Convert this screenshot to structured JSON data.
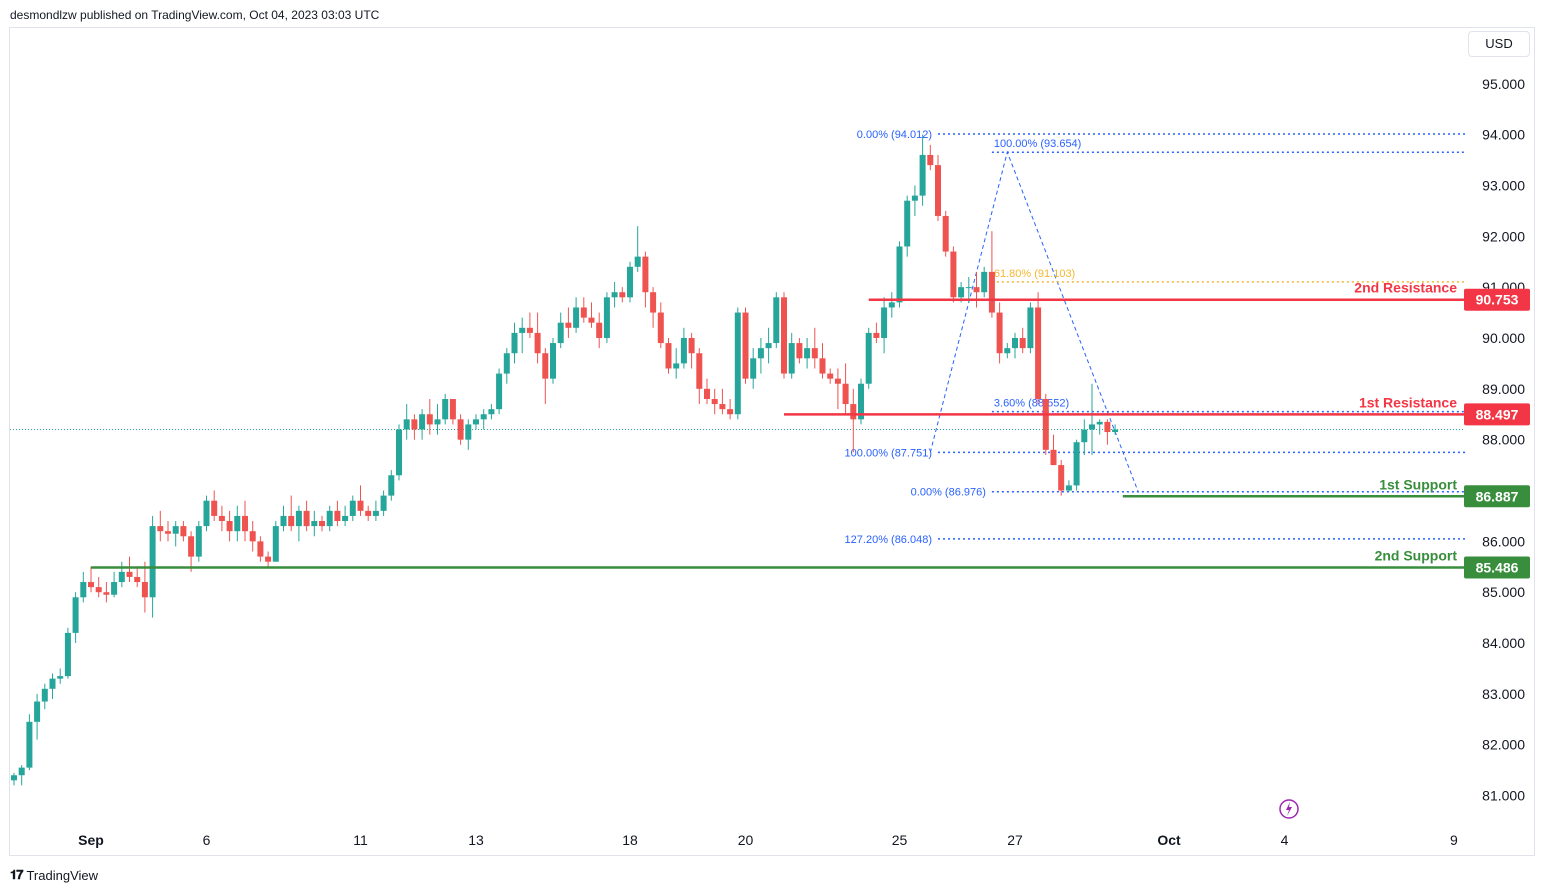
{
  "header": {
    "published": "desmondlzw published on TradingView.com, Oct 04, 2023 03:03 UTC"
  },
  "currency": "USD",
  "footer": {
    "brand": "TradingView"
  },
  "colors": {
    "up": "#26a69a",
    "down": "#ef5350",
    "resistance": "#f23645",
    "support": "#388e3c",
    "fib": "#2962ff",
    "fib_gold": "#f5b731",
    "grid": "#e0e3eb"
  },
  "chart_data": {
    "type": "candlestick",
    "ylim": [
      80.5,
      95.9
    ],
    "y_ticks": [
      "95.000",
      "94.000",
      "93.000",
      "92.000",
      "91.000",
      "90.000",
      "89.000",
      "88.000",
      "86.000",
      "85.000",
      "84.000",
      "83.000",
      "82.000",
      "81.000"
    ],
    "y_tick_values": [
      95,
      94,
      93,
      92,
      91,
      90,
      89,
      88,
      86,
      85,
      84,
      83,
      82,
      81
    ],
    "x_ticks": [
      {
        "label": "Sep",
        "bar": 10,
        "bold": true
      },
      {
        "label": "6",
        "bar": 25
      },
      {
        "label": "11",
        "bar": 45
      },
      {
        "label": "13",
        "bar": 60
      },
      {
        "label": "18",
        "bar": 80
      },
      {
        "label": "20",
        "bar": 95
      },
      {
        "label": "25",
        "bar": 115
      },
      {
        "label": "27",
        "bar": 130
      },
      {
        "label": "Oct",
        "bar": 150,
        "bold": true
      },
      {
        "label": "4",
        "bar": 165
      },
      {
        "label": "9",
        "bar": 187
      }
    ],
    "last_price": 88.2,
    "candles": [
      [
        81.3,
        81.45,
        81.2,
        81.4
      ],
      [
        81.4,
        81.6,
        81.2,
        81.55
      ],
      [
        81.55,
        82.6,
        81.5,
        82.45
      ],
      [
        82.45,
        83.0,
        82.1,
        82.85
      ],
      [
        82.85,
        83.2,
        82.7,
        83.1
      ],
      [
        83.1,
        83.4,
        82.9,
        83.3
      ],
      [
        83.3,
        83.5,
        83.2,
        83.35
      ],
      [
        83.35,
        84.3,
        83.3,
        84.2
      ],
      [
        84.2,
        85.0,
        84.0,
        84.9
      ],
      [
        84.9,
        85.4,
        84.8,
        85.2
      ],
      [
        85.2,
        85.5,
        85.0,
        85.1
      ],
      [
        85.1,
        85.3,
        84.9,
        85.0
      ],
      [
        85.0,
        85.2,
        84.8,
        84.95
      ],
      [
        84.95,
        85.4,
        84.9,
        85.2
      ],
      [
        85.2,
        85.6,
        85.1,
        85.4
      ],
      [
        85.4,
        85.7,
        85.2,
        85.3
      ],
      [
        85.3,
        85.5,
        85.1,
        85.2
      ],
      [
        85.2,
        85.6,
        84.6,
        84.9
      ],
      [
        84.9,
        86.5,
        84.5,
        86.3
      ],
      [
        86.3,
        86.6,
        86.0,
        86.2
      ],
      [
        86.2,
        86.4,
        86.0,
        86.15
      ],
      [
        86.15,
        86.4,
        85.9,
        86.3
      ],
      [
        86.3,
        86.4,
        86.0,
        86.1
      ],
      [
        86.1,
        86.2,
        85.4,
        85.7
      ],
      [
        85.7,
        86.4,
        85.6,
        86.3
      ],
      [
        86.3,
        86.9,
        86.2,
        86.8
      ],
      [
        86.8,
        87.0,
        86.4,
        86.5
      ],
      [
        86.5,
        86.7,
        86.2,
        86.4
      ],
      [
        86.4,
        86.6,
        86.0,
        86.2
      ],
      [
        86.2,
        86.7,
        86.0,
        86.5
      ],
      [
        86.5,
        86.8,
        86.0,
        86.2
      ],
      [
        86.2,
        86.4,
        85.8,
        86.0
      ],
      [
        86.0,
        86.1,
        85.6,
        85.7
      ],
      [
        85.7,
        85.8,
        85.5,
        85.6
      ],
      [
        85.6,
        86.4,
        85.6,
        86.3
      ],
      [
        86.3,
        86.7,
        86.2,
        86.5
      ],
      [
        86.5,
        86.9,
        86.2,
        86.3
      ],
      [
        86.3,
        86.7,
        86.0,
        86.6
      ],
      [
        86.6,
        86.8,
        86.2,
        86.3
      ],
      [
        86.3,
        86.6,
        86.1,
        86.4
      ],
      [
        86.4,
        86.5,
        86.2,
        86.3
      ],
      [
        86.3,
        86.7,
        86.2,
        86.6
      ],
      [
        86.6,
        86.8,
        86.3,
        86.4
      ],
      [
        86.4,
        86.7,
        86.3,
        86.5
      ],
      [
        86.5,
        86.9,
        86.4,
        86.8
      ],
      [
        86.8,
        87.1,
        86.5,
        86.6
      ],
      [
        86.6,
        86.7,
        86.4,
        86.5
      ],
      [
        86.5,
        86.8,
        86.4,
        86.6
      ],
      [
        86.6,
        87.0,
        86.5,
        86.9
      ],
      [
        86.9,
        87.4,
        86.8,
        87.3
      ],
      [
        87.3,
        88.3,
        87.2,
        88.2
      ],
      [
        88.2,
        88.7,
        88.0,
        88.4
      ],
      [
        88.4,
        88.5,
        88.0,
        88.2
      ],
      [
        88.2,
        88.6,
        88.0,
        88.5
      ],
      [
        88.5,
        88.8,
        88.1,
        88.3
      ],
      [
        88.3,
        88.7,
        88.1,
        88.4
      ],
      [
        88.4,
        88.9,
        88.3,
        88.8
      ],
      [
        88.8,
        88.8,
        88.3,
        88.4
      ],
      [
        88.4,
        88.5,
        87.9,
        88.0
      ],
      [
        88.0,
        88.4,
        87.8,
        88.3
      ],
      [
        88.3,
        88.5,
        88.2,
        88.4
      ],
      [
        88.4,
        88.6,
        88.2,
        88.5
      ],
      [
        88.5,
        88.7,
        88.4,
        88.6
      ],
      [
        88.6,
        89.4,
        88.5,
        89.3
      ],
      [
        89.3,
        89.8,
        89.1,
        89.7
      ],
      [
        89.7,
        90.3,
        89.5,
        90.1
      ],
      [
        90.1,
        90.4,
        89.7,
        90.2
      ],
      [
        90.2,
        90.5,
        90.0,
        90.1
      ],
      [
        90.1,
        90.5,
        89.5,
        89.7
      ],
      [
        89.7,
        89.8,
        88.7,
        89.2
      ],
      [
        89.2,
        90.0,
        89.1,
        89.9
      ],
      [
        89.9,
        90.5,
        89.8,
        90.3
      ],
      [
        90.3,
        90.6,
        90.0,
        90.2
      ],
      [
        90.2,
        90.8,
        90.1,
        90.6
      ],
      [
        90.6,
        90.8,
        90.3,
        90.4
      ],
      [
        90.4,
        90.7,
        90.2,
        90.3
      ],
      [
        90.3,
        90.5,
        89.8,
        90.0
      ],
      [
        90.0,
        90.9,
        89.9,
        90.8
      ],
      [
        90.8,
        91.1,
        90.6,
        90.9
      ],
      [
        90.9,
        91.0,
        90.7,
        90.8
      ],
      [
        90.8,
        91.5,
        90.7,
        91.4
      ],
      [
        91.4,
        92.2,
        91.3,
        91.6
      ],
      [
        91.6,
        91.7,
        90.6,
        90.9
      ],
      [
        90.9,
        91.0,
        90.2,
        90.5
      ],
      [
        90.5,
        90.7,
        89.8,
        89.9
      ],
      [
        89.9,
        90.0,
        89.3,
        89.4
      ],
      [
        89.4,
        89.8,
        89.2,
        89.5
      ],
      [
        89.5,
        90.2,
        89.4,
        90.0
      ],
      [
        90.0,
        90.1,
        89.4,
        89.7
      ],
      [
        89.7,
        89.8,
        88.7,
        89.0
      ],
      [
        89.0,
        89.2,
        88.7,
        88.8
      ],
      [
        88.8,
        89.0,
        88.5,
        88.7
      ],
      [
        88.7,
        89.0,
        88.5,
        88.6
      ],
      [
        88.6,
        88.8,
        88.4,
        88.5
      ],
      [
        88.5,
        90.6,
        88.4,
        90.5
      ],
      [
        90.5,
        90.6,
        89.1,
        89.2
      ],
      [
        89.2,
        89.8,
        89.0,
        89.6
      ],
      [
        89.6,
        90.0,
        89.3,
        89.8
      ],
      [
        89.8,
        90.2,
        89.5,
        89.9
      ],
      [
        89.9,
        90.9,
        89.8,
        90.8
      ],
      [
        90.8,
        90.9,
        89.2,
        89.3
      ],
      [
        89.3,
        90.1,
        89.2,
        89.9
      ],
      [
        89.9,
        90.0,
        89.5,
        89.6
      ],
      [
        89.6,
        90.0,
        89.4,
        89.8
      ],
      [
        89.8,
        90.2,
        89.4,
        89.6
      ],
      [
        89.6,
        89.9,
        89.2,
        89.3
      ],
      [
        89.3,
        89.4,
        89.1,
        89.2
      ],
      [
        89.2,
        89.4,
        88.6,
        89.1
      ],
      [
        89.1,
        89.5,
        88.5,
        88.7
      ],
      [
        88.7,
        89.0,
        87.75,
        88.4
      ],
      [
        88.4,
        89.2,
        88.3,
        89.1
      ],
      [
        89.1,
        90.2,
        89.0,
        90.1
      ],
      [
        90.1,
        90.3,
        89.9,
        90.0
      ],
      [
        90.0,
        90.8,
        89.7,
        90.6
      ],
      [
        90.6,
        90.9,
        90.4,
        90.7
      ],
      [
        90.7,
        91.9,
        90.6,
        91.8
      ],
      [
        91.8,
        92.8,
        91.6,
        92.7
      ],
      [
        92.7,
        93.0,
        92.4,
        92.8
      ],
      [
        92.8,
        94.0,
        92.6,
        93.6
      ],
      [
        93.6,
        93.8,
        93.3,
        93.4
      ],
      [
        93.4,
        93.6,
        92.3,
        92.4
      ],
      [
        92.4,
        92.5,
        91.6,
        91.7
      ],
      [
        91.7,
        91.8,
        90.7,
        90.8
      ],
      [
        90.8,
        91.1,
        90.7,
        91.0
      ],
      [
        91.0,
        91.2,
        90.7,
        91.0
      ],
      [
        91.0,
        91.3,
        90.6,
        90.9
      ],
      [
        90.9,
        91.4,
        90.8,
        91.3
      ],
      [
        91.3,
        92.1,
        90.4,
        90.5
      ],
      [
        90.5,
        90.7,
        89.5,
        89.7
      ],
      [
        89.7,
        89.9,
        89.6,
        89.8
      ],
      [
        89.8,
        90.1,
        89.6,
        90.0
      ],
      [
        90.0,
        90.2,
        89.7,
        89.8
      ],
      [
        89.8,
        90.7,
        89.7,
        90.6
      ],
      [
        90.6,
        90.9,
        88.7,
        88.8
      ],
      [
        88.8,
        88.9,
        87.7,
        87.8
      ],
      [
        87.8,
        88.1,
        87.5,
        87.5
      ],
      [
        87.5,
        87.6,
        86.9,
        87.0
      ],
      [
        87.0,
        87.2,
        86.976,
        87.1
      ],
      [
        87.1,
        88.0,
        87.0,
        87.95
      ],
      [
        87.95,
        88.4,
        87.7,
        88.2
      ],
      [
        88.2,
        89.1,
        87.7,
        88.3
      ],
      [
        88.3,
        88.4,
        88.1,
        88.35
      ],
      [
        88.35,
        88.4,
        87.9,
        88.15
      ],
      [
        88.15,
        88.3,
        88.1,
        88.2
      ]
    ],
    "levels": [
      {
        "name": "2nd Resistance",
        "value": 90.753,
        "label": "90.753",
        "kind": "resistance",
        "from_bar": 111
      },
      {
        "name": "1st Resistance",
        "value": 88.497,
        "label": "88.497",
        "kind": "resistance",
        "from_bar": 100
      },
      {
        "name": "1st Support",
        "value": 86.887,
        "label": "86.887",
        "kind": "support",
        "from_bar": 144
      },
      {
        "name": "2nd Support",
        "value": 85.486,
        "label": "85.486",
        "kind": "support",
        "from_bar": 10
      }
    ],
    "fib_labels": [
      {
        "text": "0.00% (94.012)",
        "value": 94.012,
        "from_bar": 120,
        "color": "fib"
      },
      {
        "text": "100.00% (93.654)",
        "value": 93.654,
        "from_bar": 127,
        "color": "fib",
        "inline": true
      },
      {
        "text": "61.80% (91.103)",
        "value": 91.103,
        "from_bar": 127,
        "color": "fib_gold",
        "inline": true
      },
      {
        "text": "3.60% (88.552)",
        "value": 88.552,
        "from_bar": 127,
        "color": "fib",
        "inline": true
      },
      {
        "text": "100.00% (87.751)",
        "value": 87.751,
        "from_bar": 120,
        "color": "fib"
      },
      {
        "text": "0.00% (86.976)",
        "value": 86.976,
        "from_bar": 127,
        "color": "fib"
      },
      {
        "text": "127.20% (86.048)",
        "value": 86.048,
        "from_bar": 120,
        "color": "fib"
      }
    ],
    "fib_path": [
      [
        119,
        87.751
      ],
      [
        129,
        93.654
      ],
      [
        146,
        86.976
      ]
    ]
  }
}
